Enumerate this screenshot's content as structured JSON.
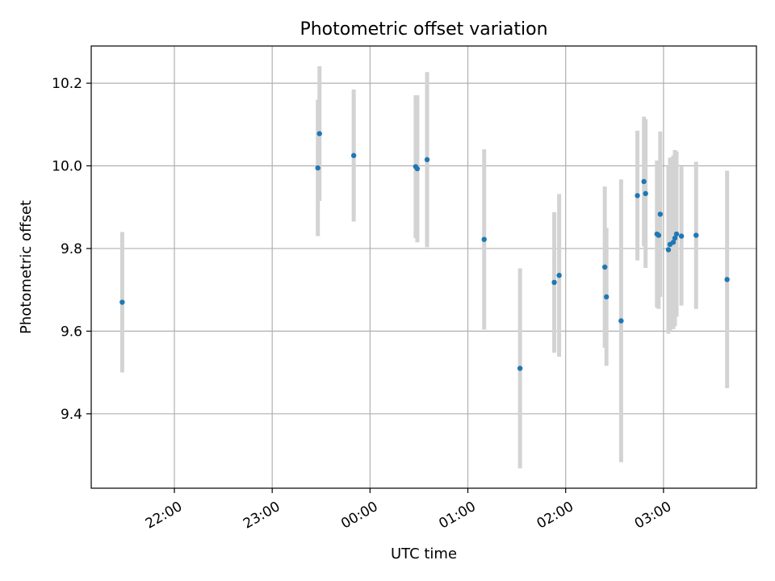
{
  "chart_data": {
    "type": "scatter",
    "title": "Photometric offset variation",
    "xlabel": "UTC time",
    "ylabel": "Photometric offset",
    "xaxis_type": "time",
    "xticks": [
      "22:00",
      "23:00",
      "00:00",
      "01:00",
      "02:00",
      "03:00"
    ],
    "yticks": [
      "9.4",
      "9.6",
      "9.8",
      "10.0",
      "10.2"
    ],
    "ylim": [
      9.22,
      10.29
    ],
    "xlim": [
      "21:09",
      "03:57"
    ],
    "grid": true,
    "errorbars": true,
    "colors": {
      "points": "#1f77b4",
      "errorbars": "#d3d3d3",
      "grid": "#b0b0b0"
    },
    "points": [
      {
        "x": "21:28",
        "y": 9.67,
        "yerr": 0.17
      },
      {
        "x": "23:28",
        "y": 9.995,
        "yerr": 0.165
      },
      {
        "x": "23:29",
        "y": 10.078,
        "yerr": 0.163
      },
      {
        "x": "23:50",
        "y": 10.025,
        "yerr": 0.16
      },
      {
        "x": "00:28",
        "y": 9.998,
        "yerr": 0.173
      },
      {
        "x": "00:29",
        "y": 9.993,
        "yerr": 0.178
      },
      {
        "x": "00:35",
        "y": 10.015,
        "yerr": 0.212
      },
      {
        "x": "01:10",
        "y": 9.822,
        "yerr": 0.218
      },
      {
        "x": "01:32",
        "y": 9.51,
        "yerr": 0.242
      },
      {
        "x": "01:53",
        "y": 9.718,
        "yerr": 0.17
      },
      {
        "x": "01:56",
        "y": 9.735,
        "yerr": 0.197
      },
      {
        "x": "02:24",
        "y": 9.755,
        "yerr": 0.195
      },
      {
        "x": "02:25",
        "y": 9.683,
        "yerr": 0.167
      },
      {
        "x": "02:34",
        "y": 9.625,
        "yerr": 0.342
      },
      {
        "x": "02:44",
        "y": 9.928,
        "yerr": 0.157
      },
      {
        "x": "02:48",
        "y": 9.962,
        "yerr": 0.157
      },
      {
        "x": "02:49",
        "y": 9.933,
        "yerr": 0.18
      },
      {
        "x": "02:56",
        "y": 9.835,
        "yerr": 0.178
      },
      {
        "x": "02:57",
        "y": 9.832,
        "yerr": 0.178
      },
      {
        "x": "02:58",
        "y": 9.883,
        "yerr": 0.2
      },
      {
        "x": "03:03",
        "y": 9.797,
        "yerr": 0.203
      },
      {
        "x": "03:04",
        "y": 9.81,
        "yerr": 0.21
      },
      {
        "x": "03:06",
        "y": 9.815,
        "yerr": 0.21
      },
      {
        "x": "03:07",
        "y": 9.825,
        "yerr": 0.213
      },
      {
        "x": "03:08",
        "y": 9.835,
        "yerr": 0.2
      },
      {
        "x": "03:11",
        "y": 9.83,
        "yerr": 0.168
      },
      {
        "x": "03:20",
        "y": 9.832,
        "yerr": 0.178
      },
      {
        "x": "03:39",
        "y": 9.725,
        "yerr": 0.263
      }
    ]
  }
}
